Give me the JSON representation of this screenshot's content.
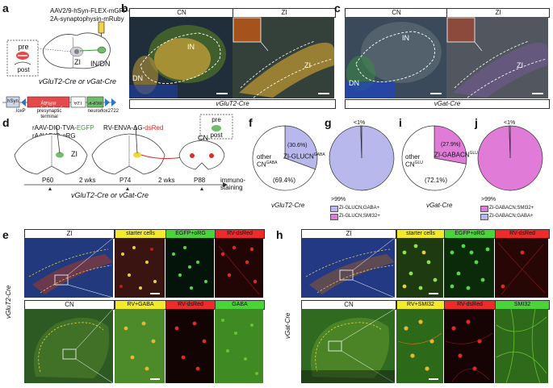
{
  "panels": {
    "a": {
      "label": "a",
      "vector_line1": "AAV2/9-hSyn-FLEX-mGFP-",
      "vector_line2": "2A-synaptophysin-mRuby",
      "pre": "pre",
      "post": "post",
      "zi": "ZI",
      "indn": "IN/DN",
      "mice": "vGluT2-Cre or vGat-Cre",
      "construct": {
        "hsyn": "hSyn",
        "loxp": "loxP",
        "mruby": "synaptophysin-mRuby",
        "t2a": "T2A",
        "mgfp": "mGFP",
        "lox2722": "lox2722",
        "presyn_terminal": "presynaptic terminal",
        "neuron": "neuron"
      }
    },
    "b": {
      "label": "b",
      "cn": "CN",
      "zi": "ZI",
      "in": "IN",
      "dn": "DN",
      "zi_region": "ZI",
      "footer": "vGluT2-Cre"
    },
    "c": {
      "label": "c",
      "cn": "CN",
      "zi": "ZI",
      "in": "IN",
      "dn": "DN",
      "zi_region": "ZI",
      "footer": "vGat-Cre"
    },
    "d": {
      "label": "d",
      "virus1": "rAAV-DIO-TVA-",
      "virus1_egfp": "EGFP",
      "virus2": "rAAV-DIO-oRG",
      "virus3": "RV-ENVA-ΔG-",
      "virus3_dsred": "dsRed",
      "zi": "ZI",
      "cn": "CN",
      "pre": "pre",
      "post": "post",
      "p60": "P60",
      "wks1": "2 wks",
      "p74": "P74",
      "wks2": "2 wks",
      "p88": "P88",
      "immuno": "immuno-",
      "staining": "staining",
      "mice": "vGluT2-Cre or vGat-Cre"
    },
    "f": {
      "label": "f",
      "slice_pct": "(30.6%)",
      "slice_name": "ZI-GLUCN",
      "slice_sup": "GABA",
      "other": "other",
      "other_cn": "CN",
      "other_sup": "GABA",
      "other_pct": "(69.4%)",
      "footer": "vGluT2-Cre"
    },
    "g": {
      "label": "g",
      "lt1": "<1%",
      "gt99": ">99%",
      "legend1": "ZI-GLUCN;GABA+",
      "legend2": "ZI-GLUCN;SMI32+"
    },
    "i": {
      "label": "i",
      "slice_pct": "(27.9%)",
      "slice_name": "ZI-GABACN",
      "slice_sup": "GLU",
      "other": "other",
      "other_cn": "CN",
      "other_sup": "GLU",
      "other_pct": "(72.1%)",
      "footer": "vGat-Cre"
    },
    "j": {
      "label": "j",
      "lt1": "<1%",
      "gt99": ">99%",
      "legend1": "ZI-GABACN;SMI32+",
      "legend2": "ZI-GABACN;GABA+"
    },
    "e": {
      "label": "e",
      "side": "vGluT2-Cre",
      "zi": "ZI",
      "starter": "starter cells",
      "egfp": "EGFP+oRG",
      "rvds": "RV-dsRed",
      "cn": "CN",
      "rvgaba": "RV+GABA",
      "rvds2": "RV-dsRed",
      "gaba": "GABA"
    },
    "h": {
      "label": "h",
      "side": "vGat-Cre",
      "zi": "ZI",
      "starter": "starter cells",
      "egfp": "EGFP+oRG",
      "rvds": "RV-dsRed",
      "cn": "CN",
      "rvsmi": "RV+SMI32",
      "rvds2": "RV-dsRed",
      "smi": "SMI32"
    }
  },
  "chart_data": [
    {
      "type": "pie",
      "title": "",
      "categories": [
        "ZI-GLUCN (GABA)",
        "other CN (GABA)"
      ],
      "values": [
        30.6,
        69.4
      ],
      "colors": [
        "#b9b8ec",
        "#ffffff"
      ]
    },
    {
      "type": "pie",
      "title": "",
      "categories": [
        "ZI-GLUCN;GABA+",
        "ZI-GLUCN;SMI32+"
      ],
      "values": [
        99.5,
        0.5
      ],
      "colors": [
        "#b9b8ec",
        "#e07bd8"
      ]
    },
    {
      "type": "pie",
      "title": "",
      "categories": [
        "ZI-GABACN (GLU)",
        "other CN (GLU)"
      ],
      "values": [
        27.9,
        72.1
      ],
      "colors": [
        "#e07bd8",
        "#ffffff"
      ]
    },
    {
      "type": "pie",
      "title": "",
      "categories": [
        "ZI-GABACN;SMI32+",
        "ZI-GABACN;GABA+"
      ],
      "values": [
        99.5,
        0.5
      ],
      "colors": [
        "#e07bd8",
        "#b9b8ec"
      ]
    }
  ]
}
